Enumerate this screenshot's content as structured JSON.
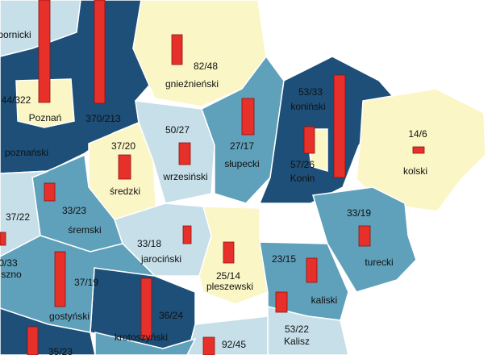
{
  "labels": [
    "pornicki",
    "44/322",
    "Poznań",
    "370/213",
    "82/48",
    "gnieźnieński",
    "53/33",
    "koniński",
    "14/6",
    "kolski",
    "50/27",
    "wrzesiński",
    "27/17",
    "słupecki",
    "57/26",
    "Konin",
    "37/20",
    "średzki",
    "poznański",
    "37/22",
    "33/23",
    "śremski",
    "33/19",
    "turecki",
    "33/18",
    "jarociński",
    "0/33",
    "szno",
    "25/14",
    "pleszewski",
    "23/15",
    "kaliski",
    "37/19",
    "gostyński",
    "36/24",
    "krotoszyński",
    "92/45",
    "53/22",
    "Kalisz",
    "35/23"
  ]
}
